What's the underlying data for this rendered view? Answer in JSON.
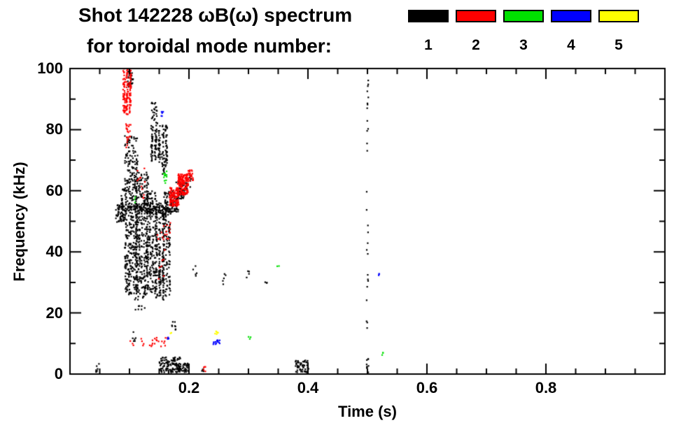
{
  "chart_data": {
    "type": "scatter",
    "title": "Shot 142228 ωB(ω) spectrum",
    "subtitle": "for toroidal mode number:",
    "xlabel": "Time (s)",
    "ylabel": "Frequency (kHz)",
    "xlim": [
      0.0,
      1.0
    ],
    "ylim": [
      0,
      100
    ],
    "grid": false,
    "xticks": [
      {
        "label": "0.2",
        "value": 0.2
      },
      {
        "label": "0.4",
        "value": 0.4
      },
      {
        "label": "0.6",
        "value": 0.6
      },
      {
        "label": "0.8",
        "value": 0.8
      }
    ],
    "xminor_step": 0.05,
    "yticks": [
      {
        "label": "0",
        "value": 0
      },
      {
        "label": "20",
        "value": 20
      },
      {
        "label": "40",
        "value": 40
      },
      {
        "label": "60",
        "value": 60
      },
      {
        "label": "80",
        "value": 80
      },
      {
        "label": "100",
        "value": 100
      }
    ],
    "yminor_step": 10,
    "legend": {
      "position": "top-right",
      "entries": [
        {
          "label": "1",
          "color": "#000000"
        },
        {
          "label": "2",
          "color": "#ff0000"
        },
        {
          "label": "3",
          "color": "#00e000"
        },
        {
          "label": "4",
          "color": "#0000ff"
        },
        {
          "label": "5",
          "color": "#ffff00"
        }
      ]
    },
    "cluster_format": "t,f = cluster center (s, kHz); dt,df = half-ranges; n = point count; cols = number of vertical streak columns",
    "series": [
      {
        "name": "1",
        "color": "#000000",
        "clusters": [
          {
            "t": 0.045,
            "f": 2,
            "dt": 0.004,
            "df": 1.5,
            "n": 7
          },
          {
            "t": 0.084,
            "f": 52.5,
            "dt": 0.007,
            "df": 3,
            "n": 45
          },
          {
            "t": 0.09,
            "f": 56,
            "dt": 0.004,
            "df": 5,
            "n": 25
          },
          {
            "t": 0.103,
            "f": 52,
            "dt": 0.009,
            "df": 26,
            "n": 400,
            "cols": 6
          },
          {
            "t": 0.121,
            "f": 46,
            "dt": 0.009,
            "df": 20,
            "n": 320,
            "cols": 5
          },
          {
            "t": 0.137,
            "f": 43,
            "dt": 0.007,
            "df": 17,
            "n": 220,
            "cols": 4
          },
          {
            "t": 0.151,
            "f": 40,
            "dt": 0.006,
            "df": 15,
            "n": 160,
            "cols": 3
          },
          {
            "t": 0.162,
            "f": 37,
            "dt": 0.005,
            "df": 13,
            "n": 110,
            "cols": 3
          },
          {
            "t": 0.128,
            "f": 54,
            "dt": 0.042,
            "df": 2,
            "n": 110
          },
          {
            "t": 0.15,
            "f": 75,
            "dt": 0.012,
            "df": 6.5,
            "n": 150,
            "cols": 5
          },
          {
            "t": 0.142,
            "f": 85.5,
            "dt": 0.005,
            "df": 3.5,
            "n": 25
          },
          {
            "t": 0.159,
            "f": 68,
            "dt": 0.004,
            "df": 3,
            "n": 20
          },
          {
            "t": 0.17,
            "f": 56.5,
            "dt": 0.012,
            "df": 3.5,
            "n": 90
          },
          {
            "t": 0.186,
            "f": 60,
            "dt": 0.008,
            "df": 3,
            "n": 45
          },
          {
            "t": 0.199,
            "f": 62.5,
            "dt": 0.005,
            "df": 2.5,
            "n": 18
          },
          {
            "t": 0.102,
            "f": 97,
            "dt": 0.005,
            "df": 3,
            "n": 28
          },
          {
            "t": 0.168,
            "f": 3,
            "dt": 0.018,
            "df": 2.5,
            "n": 120
          },
          {
            "t": 0.19,
            "f": 2,
            "dt": 0.009,
            "df": 1.5,
            "n": 40
          },
          {
            "t": 0.225,
            "f": 1.5,
            "dt": 0.004,
            "df": 1,
            "n": 7
          },
          {
            "t": 0.39,
            "f": 2.5,
            "dt": 0.011,
            "df": 2,
            "n": 55
          },
          {
            "t": 0.5,
            "f": 55,
            "dt": 0.0015,
            "df": 42,
            "n": 28
          },
          {
            "t": 0.5,
            "f": 3,
            "dt": 0.002,
            "df": 2.5,
            "n": 9
          },
          {
            "t": 0.26,
            "f": 31,
            "dt": 0.004,
            "df": 2,
            "n": 5
          },
          {
            "t": 0.3,
            "f": 33,
            "dt": 0.003,
            "df": 1.5,
            "n": 4
          },
          {
            "t": 0.33,
            "f": 30,
            "dt": 0.002,
            "df": 1.2,
            "n": 3
          },
          {
            "t": 0.175,
            "f": 16,
            "dt": 0.004,
            "df": 1.5,
            "n": 8
          },
          {
            "t": 0.21,
            "f": 33,
            "dt": 0.003,
            "df": 3,
            "n": 5
          },
          {
            "t": 0.118,
            "f": 24,
            "dt": 0.01,
            "df": 3,
            "n": 18
          },
          {
            "t": 0.105,
            "f": 12,
            "dt": 0.006,
            "df": 2,
            "n": 6
          },
          {
            "t": 0.158,
            "f": 52,
            "dt": 0.004,
            "df": 2,
            "n": 20
          }
        ]
      },
      {
        "name": "2",
        "color": "#ff0000",
        "clusters": [
          {
            "t": 0.096,
            "f": 93,
            "dt": 0.005,
            "df": 8,
            "n": 150,
            "cols": 3
          },
          {
            "t": 0.098,
            "f": 78,
            "dt": 0.004,
            "df": 4,
            "n": 22
          },
          {
            "t": 0.175,
            "f": 58,
            "dt": 0.008,
            "df": 3,
            "n": 110
          },
          {
            "t": 0.19,
            "f": 62,
            "dt": 0.009,
            "df": 3.5,
            "n": 150
          },
          {
            "t": 0.203,
            "f": 65,
            "dt": 0.004,
            "df": 2,
            "n": 25
          },
          {
            "t": 0.135,
            "f": 10,
            "dt": 0.034,
            "df": 2,
            "n": 26
          },
          {
            "t": 0.155,
            "f": 40,
            "dt": 0.008,
            "df": 9,
            "n": 16
          },
          {
            "t": 0.12,
            "f": 62,
            "dt": 0.007,
            "df": 6,
            "n": 12
          },
          {
            "t": 0.225,
            "f": 1.5,
            "dt": 0.003,
            "df": 1,
            "n": 5
          },
          {
            "t": 0.165,
            "f": 47,
            "dt": 0.004,
            "df": 3,
            "n": 8
          }
        ]
      },
      {
        "name": "3",
        "color": "#00e000",
        "clusters": [
          {
            "t": 0.16,
            "f": 64.5,
            "dt": 0.0035,
            "df": 2,
            "n": 12
          },
          {
            "t": 0.302,
            "f": 12,
            "dt": 0.002,
            "df": 0.8,
            "n": 3
          },
          {
            "t": 0.35,
            "f": 36,
            "dt": 0.002,
            "df": 0.8,
            "n": 2
          },
          {
            "t": 0.525,
            "f": 7,
            "dt": 0.002,
            "df": 0.8,
            "n": 3
          },
          {
            "t": 0.11,
            "f": 57,
            "dt": 0.002,
            "df": 1,
            "n": 3
          }
        ]
      },
      {
        "name": "4",
        "color": "#0000ff",
        "clusters": [
          {
            "t": 0.247,
            "f": 10.5,
            "dt": 0.007,
            "df": 0.8,
            "n": 14
          },
          {
            "t": 0.155,
            "f": 85,
            "dt": 0.002,
            "df": 1,
            "n": 5
          },
          {
            "t": 0.52,
            "f": 33,
            "dt": 0.002,
            "df": 0.8,
            "n": 3
          },
          {
            "t": 0.165,
            "f": 11.5,
            "dt": 0.002,
            "df": 0.8,
            "n": 3
          }
        ]
      },
      {
        "name": "5",
        "color": "#ffff00",
        "clusters": [
          {
            "t": 0.246,
            "f": 13.5,
            "dt": 0.004,
            "df": 0.8,
            "n": 6
          },
          {
            "t": 0.17,
            "f": 13,
            "dt": 0.002,
            "df": 0.6,
            "n": 2
          }
        ]
      }
    ]
  }
}
